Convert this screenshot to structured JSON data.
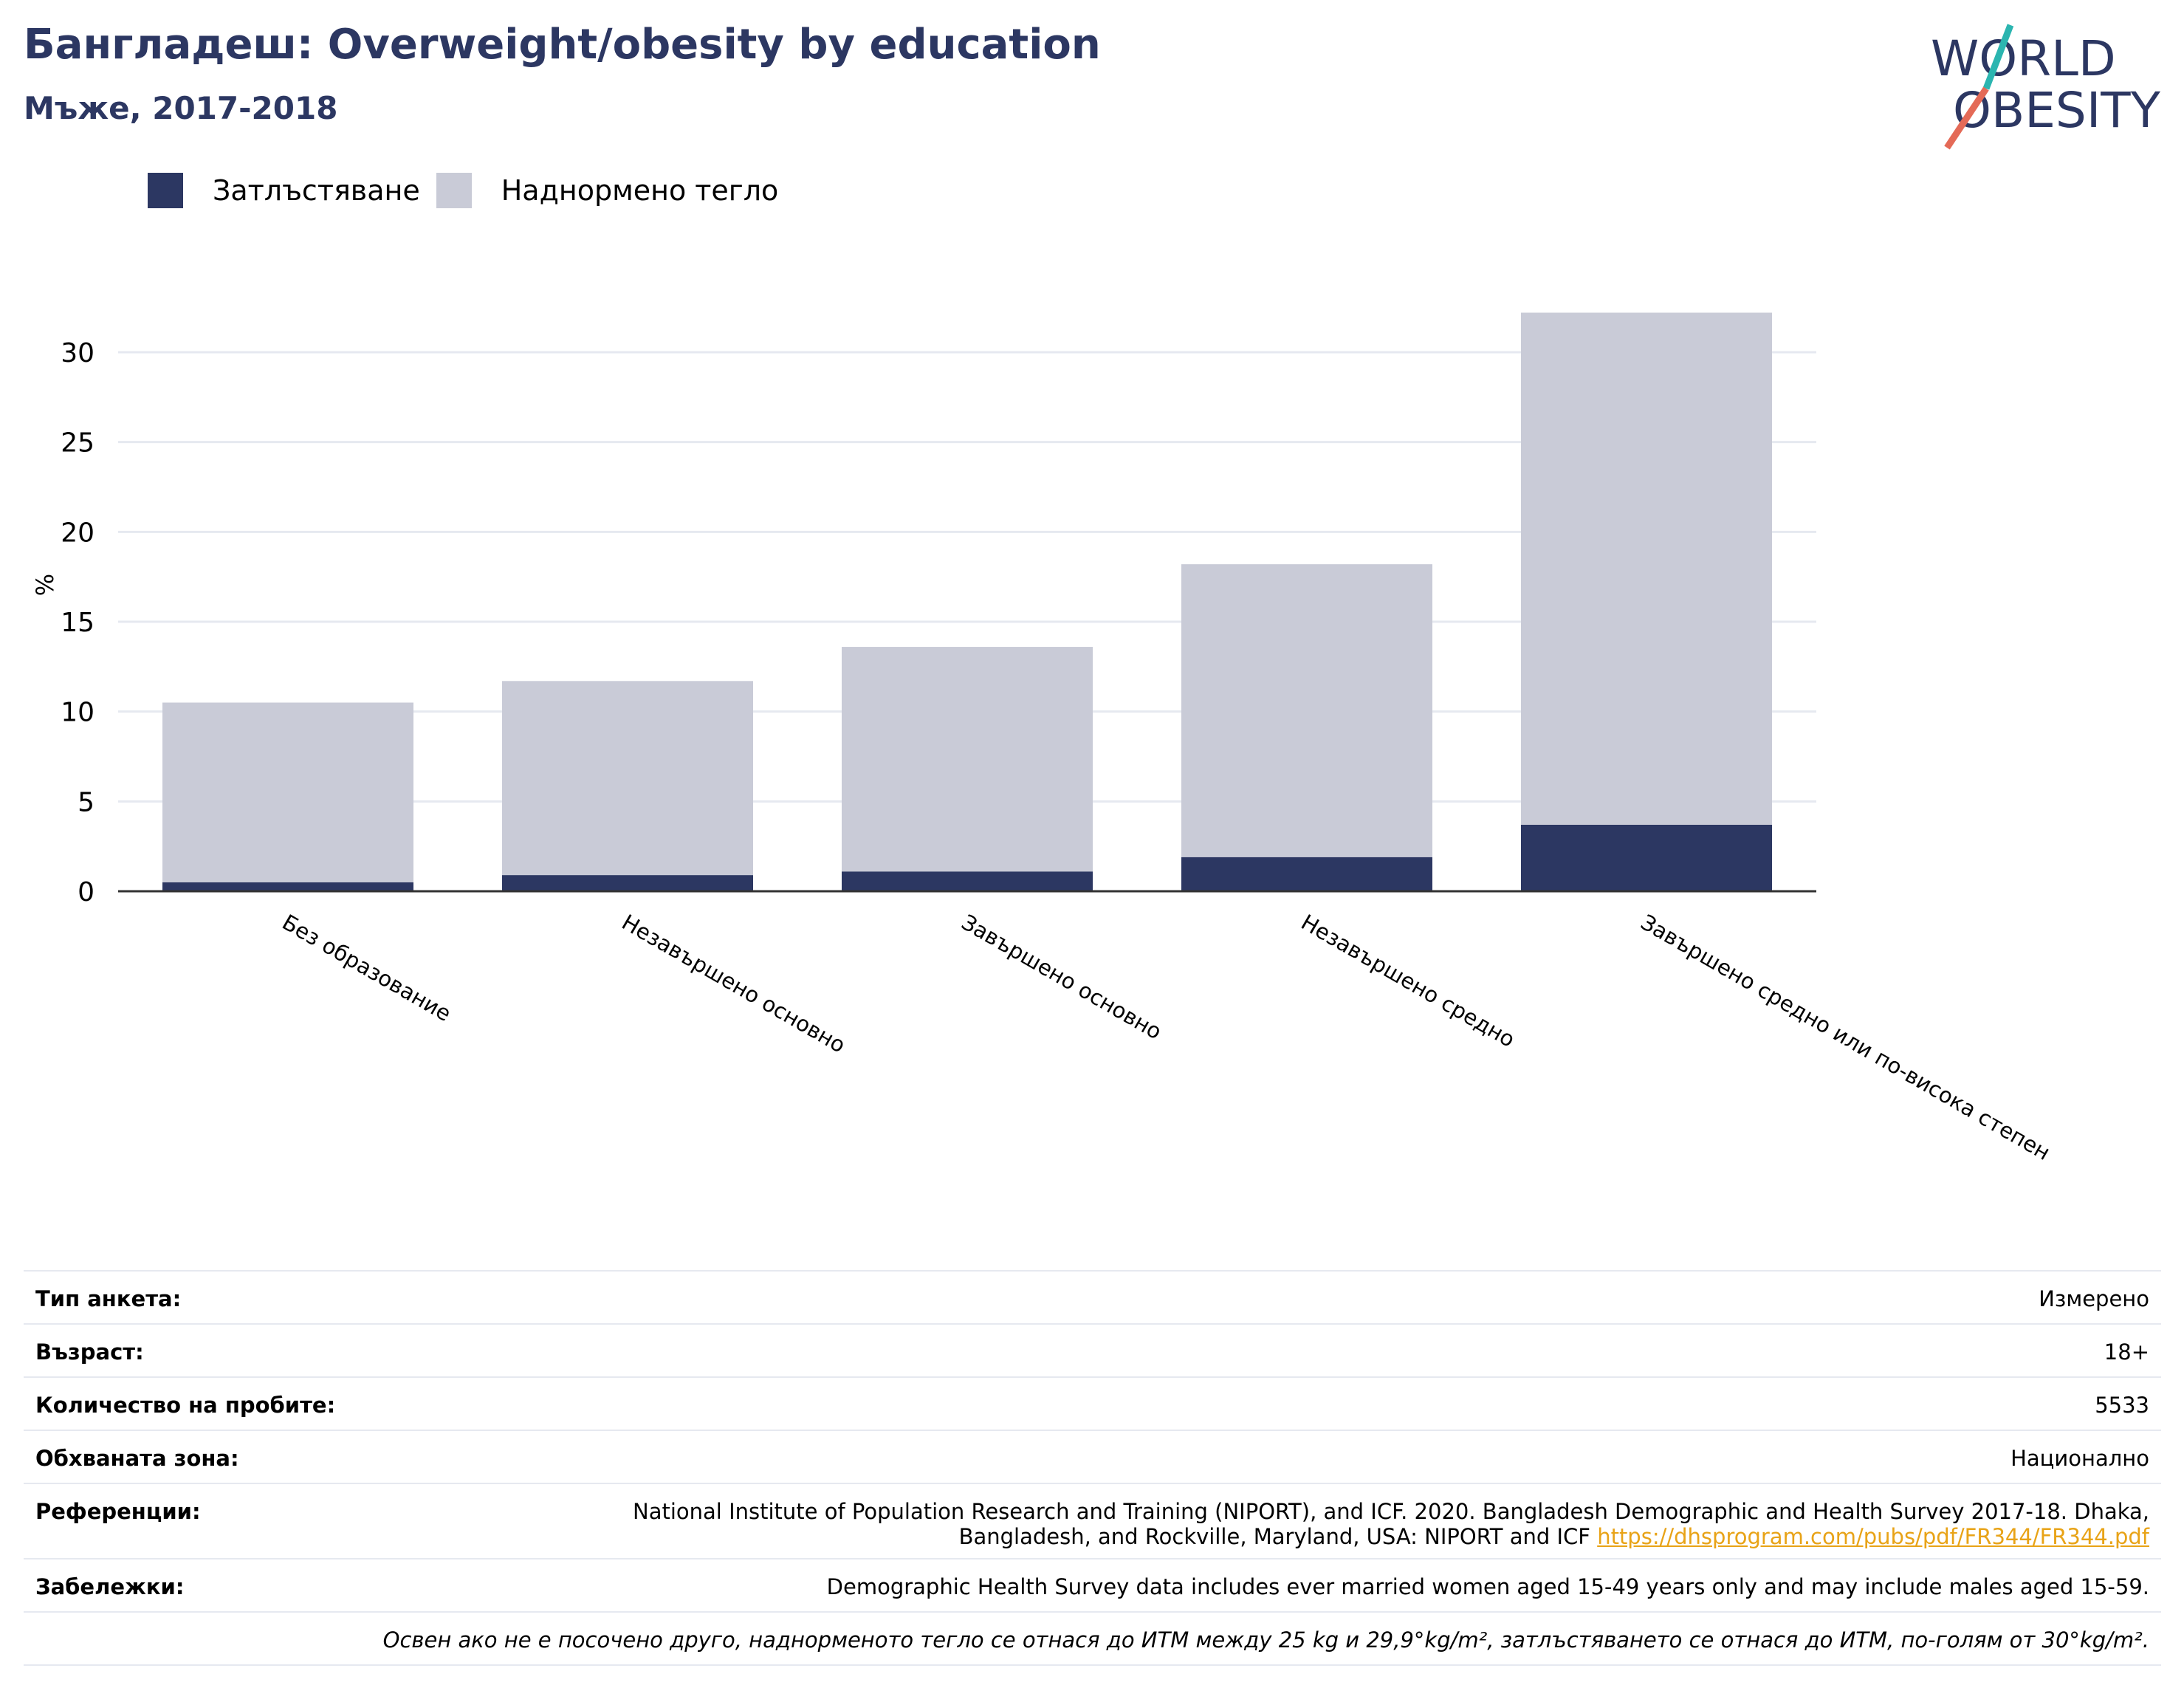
{
  "header": {
    "title": "Бангладеш: Overweight/obesity by education",
    "subtitle": "Мъже, 2017-2018"
  },
  "logo": {
    "line1": "WORLD",
    "line2": "OBESITY",
    "accent_teal": "#2bb5b0",
    "accent_coral": "#e46a57"
  },
  "colors": {
    "obesity": "#2c3762",
    "overweight": "#c9cbd7",
    "title": "#2c3762",
    "link": "#e8a317"
  },
  "legend": [
    {
      "label": "Затлъстяване",
      "color": "#2c3762"
    },
    {
      "label": "Наднормено тегло",
      "color": "#c9cbd7"
    }
  ],
  "chart_data": {
    "type": "bar",
    "stacked": true,
    "categories": [
      "Без образование",
      "Незавършено основно",
      "Завършено основно",
      "Незавършено средно",
      "Завършено средно или по-висока степен"
    ],
    "series": [
      {
        "name": "Затлъстяване",
        "color": "#2c3762",
        "values": [
          0.5,
          0.9,
          1.1,
          1.9,
          3.7
        ]
      },
      {
        "name": "Наднормено тегло",
        "color": "#c9cbd7",
        "values": [
          10.0,
          10.8,
          12.5,
          16.3,
          28.5
        ]
      }
    ],
    "ylabel": "%",
    "yticks": [
      0,
      5,
      10,
      15,
      20,
      25,
      30
    ],
    "ylim": [
      0,
      33
    ],
    "grid": true,
    "legend_position": "top-left"
  },
  "info": {
    "rows": [
      {
        "key": "Тип анкета:",
        "value": "Измерено"
      },
      {
        "key": "Възраст:",
        "value": "18+"
      },
      {
        "key": "Количество на пробите:",
        "value": "5533"
      },
      {
        "key": "Обхваната зона:",
        "value": "Национално"
      }
    ],
    "references": {
      "key": "Референции:",
      "line1": "National Institute of Population Research and Training (NIPORT), and ICF. 2020. Bangladesh Demographic and Health Survey 2017-18. Dhaka,",
      "line2": "Bangladesh, and Rockville, Maryland, USA: NIPORT and ICF",
      "link": "https://dhsprogram.com/pubs/pdf/FR344/FR344.pdf"
    },
    "notes": {
      "key": "Забележки:",
      "value": "Demographic Health Survey data includes ever married women aged 15-49 years only and may include males aged 15-59."
    },
    "footnote": "Освен ако не е посочено друго, наднорменото тегло се отнася до ИТМ между 25 kg и 29,9°kg/m², затлъстяването се отнася до ИТМ, по-голям от 30°kg/m²."
  }
}
